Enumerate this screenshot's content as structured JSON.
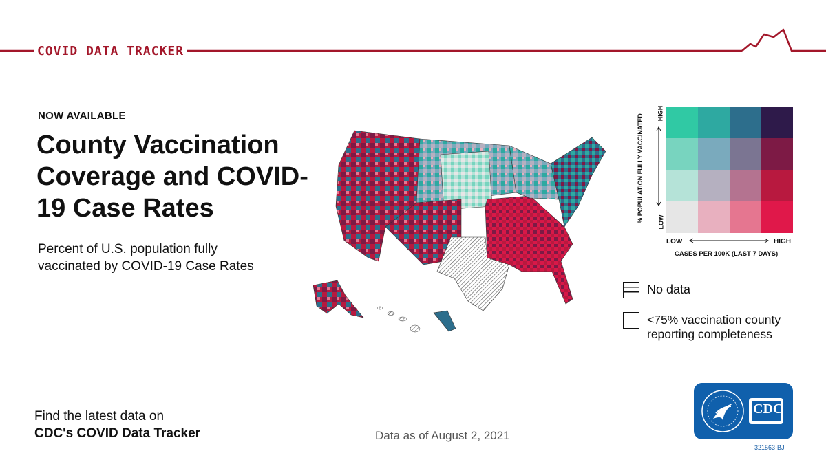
{
  "header": {
    "brand": "COVID DATA TRACKER",
    "accent_color": "#a3172a"
  },
  "intro": {
    "kicker": "NOW AVAILABLE",
    "title": "County Vaccination Coverage and COVID-19 Case Rates",
    "subtitle": "Percent of U.S. population fully vaccinated by COVID-19 Case Rates"
  },
  "legend": {
    "y_axis_label": "% POPULATION FULLY VACCINATED",
    "y_high": "HIGH",
    "y_low": "LOW",
    "x_low": "LOW",
    "x_high": "HIGH",
    "x_axis_label": "CASES PER 100K (LAST 7 DAYS)",
    "grid_colors": [
      [
        "#30c9a4",
        "#2ea9a1",
        "#2d6e8c",
        "#2e1a4a"
      ],
      [
        "#78d4bf",
        "#7aaabd",
        "#7b7592",
        "#7d1a45"
      ],
      [
        "#b5e3d8",
        "#b5b0c0",
        "#b47390",
        "#b8193f"
      ],
      [
        "#e6e6e6",
        "#e8b0bf",
        "#e57690",
        "#e0184a"
      ]
    ],
    "no_data": "No data",
    "completeness": "<75% vaccination county reporting completeness"
  },
  "footer": {
    "find_line": "Find the latest data on",
    "find_bold": "CDC's COVID Data Tracker",
    "data_as_of": "Data as of August 2, 2021",
    "logo_text": "CDC",
    "code": "321563-BJ"
  },
  "map_icon": "us-county-map"
}
